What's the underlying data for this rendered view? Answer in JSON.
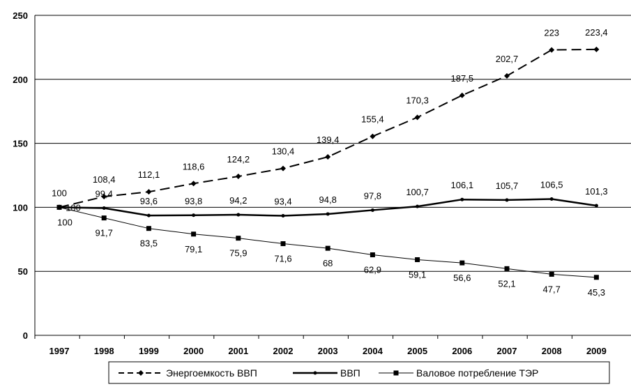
{
  "chart_data": {
    "type": "line",
    "title": "",
    "xlabel": "",
    "ylabel": "",
    "ylim": [
      0,
      250
    ],
    "yticks": [
      "0",
      "50",
      "100",
      "150",
      "200",
      "250"
    ],
    "categories": [
      "1997",
      "1998",
      "1999",
      "2000",
      "2001",
      "2002",
      "2003",
      "2004",
      "2005",
      "2006",
      "2007",
      "2008",
      "2009"
    ],
    "grid": "horizontal",
    "legend_position": "bottom",
    "series": [
      {
        "name": "Энергоемкость ВВП",
        "style": "dashed",
        "marker": "diamond",
        "values": [
          100,
          108.4,
          112.1,
          118.6,
          124.2,
          130.4,
          139.4,
          155.4,
          170.3,
          187.5,
          202.7,
          223,
          223.4
        ],
        "labels": [
          "100",
          "108,4",
          "112,1",
          "118,6",
          "124,2",
          "130,4",
          "139,4",
          "155,4",
          "170,3",
          "187,5",
          "202,7",
          "223",
          "223,4"
        ]
      },
      {
        "name": "ВВП",
        "style": "solid-thick",
        "marker": "dot",
        "values": [
          100,
          99.4,
          93.6,
          93.8,
          94.2,
          93.4,
          94.8,
          97.8,
          100.7,
          106.1,
          105.7,
          106.5,
          101.3
        ],
        "labels": [
          "100",
          "99,4",
          "93,6",
          "93,8",
          "94,2",
          "93,4",
          "94,8",
          "97,8",
          "100,7",
          "106,1",
          "105,7",
          "106,5",
          "101,3"
        ]
      },
      {
        "name": "Валовое потребление ТЭР",
        "style": "solid-thin",
        "marker": "square",
        "values": [
          100,
          91.7,
          83.5,
          79.1,
          75.9,
          71.6,
          68,
          62.9,
          59.1,
          56.6,
          52.1,
          47.7,
          45.3
        ],
        "labels": [
          "100",
          "91,7",
          "83,5",
          "79,1",
          "75,9",
          "71,6",
          "68",
          "62,9",
          "59,1",
          "56,6",
          "52,1",
          "47,7",
          "45,3"
        ]
      }
    ]
  }
}
